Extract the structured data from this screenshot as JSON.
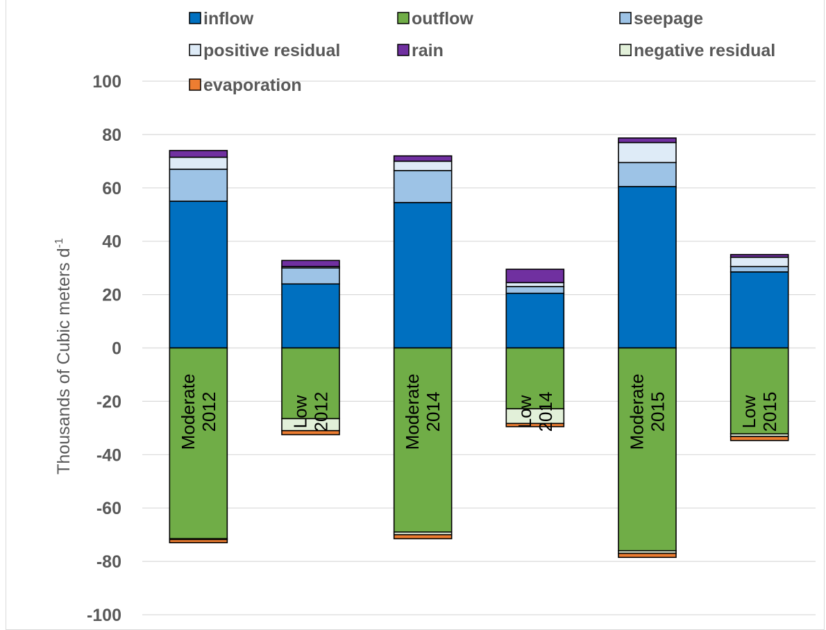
{
  "chart_data": {
    "type": "bar",
    "stacked": true,
    "title": "",
    "xlabel": "",
    "ylabel": "Thousands of Cubic meters  d",
    "ylabel_superscript": "-1",
    "ylim": [
      -100,
      100
    ],
    "yticks": [
      100,
      80,
      60,
      40,
      20,
      0,
      -20,
      -40,
      -60,
      -80,
      -100
    ],
    "grid": true,
    "legend_position": "top",
    "categories": [
      [
        "Moderate",
        "2012"
      ],
      [
        "Low",
        "2012"
      ],
      [
        "Moderate",
        "2014"
      ],
      [
        "Low",
        "2014"
      ],
      [
        "Moderate",
        "2015"
      ],
      [
        "Low",
        "2015"
      ]
    ],
    "series": [
      {
        "name": "inflow",
        "color": "#0070c0",
        "values": [
          55.0,
          24.0,
          54.5,
          20.5,
          60.5,
          28.5
        ]
      },
      {
        "name": "seepage",
        "color": "#9dc3e6",
        "values": [
          12.0,
          6.0,
          12.0,
          2.5,
          9.0,
          2.0
        ]
      },
      {
        "name": "positive residual",
        "color": "#deebf7",
        "values": [
          4.5,
          0.5,
          3.5,
          1.5,
          7.5,
          3.5
        ]
      },
      {
        "name": "rain",
        "color": "#7030a0",
        "values": [
          2.5,
          2.3,
          2.0,
          5.0,
          1.7,
          1.0
        ]
      },
      {
        "name": "outflow",
        "color": "#70ad47",
        "values": [
          -71.5,
          -26.5,
          -69.0,
          -22.8,
          -76.0,
          -32.2
        ]
      },
      {
        "name": "negative residual",
        "color": "#e2f0d9",
        "values": [
          -0.3,
          -4.5,
          -1.0,
          -5.5,
          -1.0,
          -1.0
        ]
      },
      {
        "name": "evaporation",
        "color": "#ed7d31",
        "values": [
          -1.2,
          -1.5,
          -1.5,
          -1.2,
          -1.5,
          -1.5
        ]
      }
    ],
    "legend_order": [
      "inflow",
      "outflow",
      "seepage",
      "positive residual",
      "rain",
      "negative residual",
      "evaporation"
    ]
  }
}
